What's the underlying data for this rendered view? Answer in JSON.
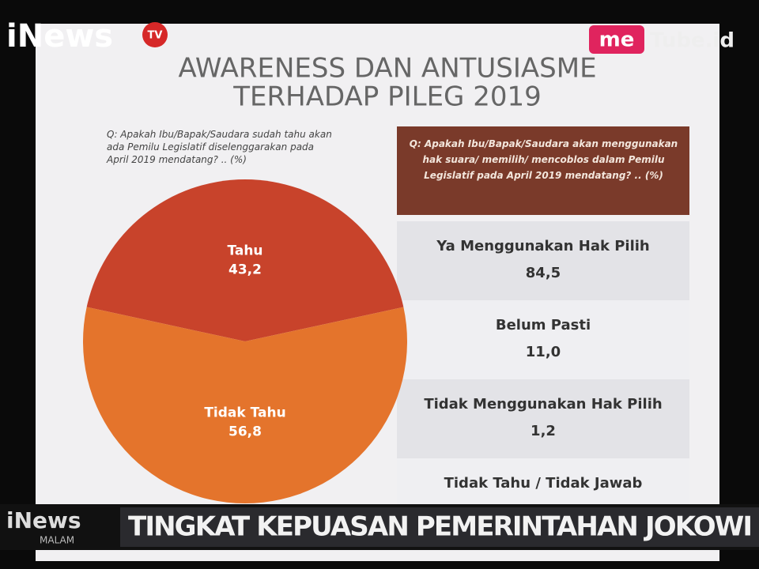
{
  "chart_data": {
    "type": "pie",
    "title": "AWARENESS DAN ANTUSIASME",
    "subtitle": "TERHADAP PILEG 2019",
    "question": "Q: Apakah Ibu/Bapak/Saudara sudah tahu akan ada Pemilu Legislatif diselenggarakan pada April 2019 mendatang? .. (%)",
    "categories": [
      "Tahu",
      "Tidak Tahu"
    ],
    "values": [
      43.2,
      56.8
    ],
    "value_labels": [
      "43,2",
      "56,8"
    ],
    "colors": [
      "#c8432b",
      "#e4742c"
    ]
  },
  "panel": {
    "question": "Q: Apakah Ibu/Bapak/Saudara akan menggunakan hak suara/ memilih/ mencoblos dalam Pemilu Legislatif pada April 2019 mendatang? .. (%)",
    "rows": [
      [
        "Ya Menggunakan Hak Pilih",
        "84,5"
      ],
      [
        "Belum Pasti",
        "11,0"
      ],
      [
        "Tidak Menggunakan Hak Pilih",
        "1,2"
      ],
      [
        "Tidak Tahu / Tidak Jawab"
      ]
    ]
  },
  "logos": {
    "channel": "iNews",
    "channel_tag": "TV",
    "partner_me": "me",
    "partner": "Tube.id",
    "program": "iNews",
    "program_sub": "MALAM"
  },
  "ticker": "TINGKAT KEPUASAN PEMERINTAHAN JOKOWI"
}
